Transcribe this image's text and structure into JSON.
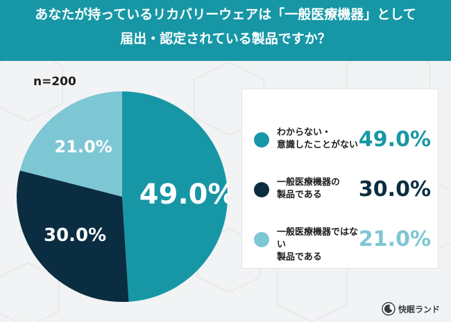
{
  "header": {
    "line1": "あなたが持っているリカバリーウェアは「一般医療機器」として",
    "line2": "届出・認定されている製品ですか？"
  },
  "sample_size": "n=200",
  "chart_data": {
    "type": "pie",
    "categories": [
      "わからない・意識したことがない",
      "一般医療機器の製品である",
      "一般医療機器ではない製品である"
    ],
    "values": [
      49.0,
      30.0,
      21.0
    ],
    "colors": [
      "#1797a6",
      "#0b2d41",
      "#7dc6d3"
    ],
    "slice_labels": [
      "49.0%",
      "30.0%",
      "21.0%"
    ],
    "start": "12 o'clock",
    "direction": "clockwise",
    "legend_position": "right"
  },
  "legend": [
    {
      "line1": "わからない・",
      "line2": "意識したことがない",
      "value": "49.0%",
      "color": "#1797a6"
    },
    {
      "line1": "一般医療機器の",
      "line2": "製品である",
      "value": "30.0%",
      "color": "#0b2d41"
    },
    {
      "line1": "一般医療機器ではない",
      "line2": "製品である",
      "value": "21.0%",
      "color": "#7dc6d3"
    }
  ],
  "logo": {
    "brand": "快眠ランド",
    "icon": "sleeping-moon-logo-icon"
  }
}
